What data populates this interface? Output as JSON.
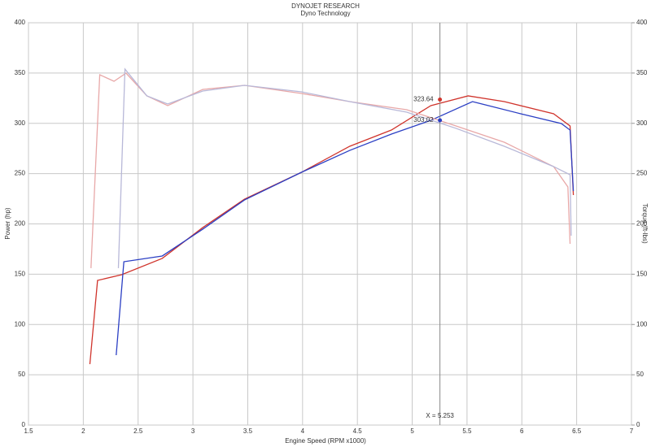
{
  "chart_data": {
    "type": "line",
    "title": "DYNOJET RESEARCH",
    "subtitle": "Dyno Technology",
    "x_label": "Engine Speed (RPM x1000)",
    "y_label": "Power (hp)",
    "y2_label": "Torque (ft-lbs)",
    "xlim": [
      1.5,
      7.0
    ],
    "xticks": [
      1.5,
      2.0,
      2.5,
      3.0,
      3.5,
      4.0,
      4.5,
      5.0,
      5.5,
      6.0,
      6.5,
      7.0
    ],
    "ylim": [
      0,
      400
    ],
    "yticks": [
      0,
      50,
      100,
      150,
      200,
      250,
      300,
      350,
      400
    ],
    "y2lim": [
      0,
      400
    ],
    "y2ticks": [
      0,
      50,
      100,
      150,
      200,
      250,
      300,
      350,
      400
    ],
    "grid": true,
    "series": [
      {
        "color": "#d0342c",
        "x": [
          2.06,
          2.13,
          2.35,
          2.72,
          3.09,
          3.47,
          3.99,
          4.43,
          4.81,
          5.17,
          5.51,
          5.84,
          6.29,
          6.44,
          6.47
        ],
        "values": [
          60.6,
          143.8,
          149.5,
          165.7,
          196.4,
          224.6,
          251.3,
          277.2,
          293.3,
          317.6,
          327.3,
          321.6,
          309.5,
          297.4,
          228.7
        ]
      },
      {
        "color": "#2b3fc4",
        "x": [
          2.3,
          2.37,
          2.72,
          3.09,
          3.47,
          3.99,
          4.43,
          4.81,
          5.17,
          5.55,
          5.99,
          6.36,
          6.44,
          6.47
        ],
        "values": [
          69.5,
          162.4,
          168.1,
          194.8,
          223.8,
          251.3,
          273.1,
          289.3,
          303.0,
          321.6,
          309.5,
          299.8,
          293.3,
          232.7
        ]
      },
      {
        "color": "#e8a8a8",
        "axis": "y2",
        "x": [
          2.07,
          2.15,
          2.28,
          2.39,
          2.58,
          2.77,
          3.09,
          3.47,
          3.99,
          4.43,
          4.95,
          5.4,
          5.84,
          6.29,
          6.42,
          6.44
        ],
        "values": [
          156.0,
          348.3,
          341.8,
          349.9,
          327.3,
          317.6,
          333.7,
          337.8,
          329.7,
          321.6,
          313.5,
          297.4,
          281.2,
          257.0,
          236.8,
          180.2
        ]
      },
      {
        "color": "#b8b8d8",
        "axis": "y2",
        "x": [
          2.32,
          2.38,
          2.58,
          2.77,
          3.09,
          3.47,
          3.99,
          4.43,
          4.95,
          5.4,
          5.84,
          6.29,
          6.44,
          6.45
        ],
        "values": [
          156.0,
          353.9,
          327.3,
          319.2,
          332.1,
          337.8,
          331.3,
          321.6,
          311.1,
          295.0,
          277.2,
          257.0,
          248.9,
          188.3
        ]
      }
    ],
    "cursor": {
      "value": 5.253,
      "label": "X = 5.253"
    },
    "markers": [
      {
        "series": 0,
        "x": 5.253,
        "y": 323.64
      },
      {
        "series": 1,
        "x": 5.253,
        "y": 303.02
      }
    ]
  }
}
